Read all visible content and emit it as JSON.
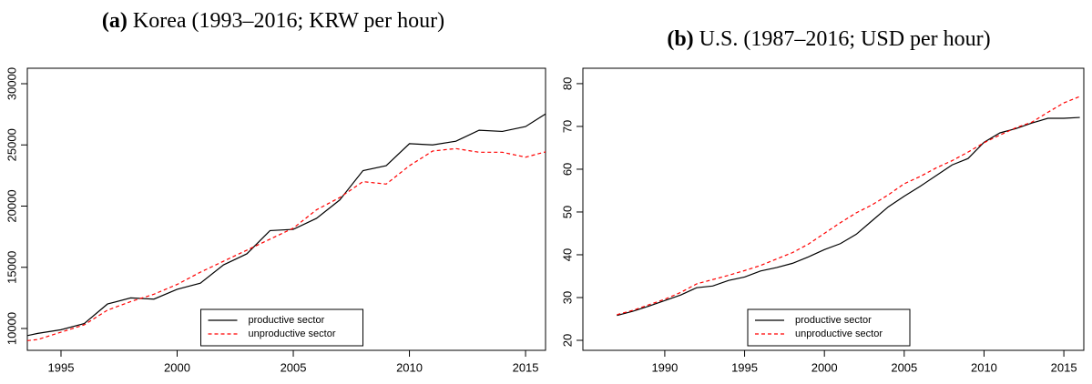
{
  "chart_data": [
    {
      "type": "line",
      "label": "(a)",
      "title": "Korea (1993–2016; KRW per hour)",
      "x": [
        1993,
        1994,
        1995,
        1996,
        1997,
        1998,
        1999,
        2000,
        2001,
        2002,
        2003,
        2004,
        2005,
        2006,
        2007,
        2008,
        2009,
        2010,
        2011,
        2012,
        2013,
        2014,
        2015,
        2016
      ],
      "series": [
        {
          "name": "productive sector",
          "color": "#000000",
          "dash": false,
          "values": [
            9200,
            9600,
            9900,
            10400,
            12000,
            12500,
            12400,
            13200,
            13700,
            15200,
            16100,
            18000,
            18100,
            19000,
            20500,
            22900,
            23300,
            25100,
            25000,
            25300,
            26200,
            26100,
            26500,
            27700
          ]
        },
        {
          "name": "unproductive sector",
          "color": "#ff0000",
          "dash": true,
          "values": [
            8900,
            9100,
            9700,
            10300,
            11500,
            12200,
            12800,
            13600,
            14600,
            15500,
            16400,
            17300,
            18200,
            19700,
            20700,
            22000,
            21800,
            23300,
            24500,
            24700,
            24400,
            24400,
            24000,
            24500
          ]
        }
      ],
      "xlim": [
        1993.55,
        2015.86
      ],
      "xticks": [
        1995,
        2000,
        2005,
        2010,
        2015
      ],
      "ylim": [
        8216,
        31264
      ],
      "yticks": [
        10000,
        15000,
        20000,
        25000,
        30000
      ],
      "legend": "bottom"
    },
    {
      "type": "line",
      "label": "(b)",
      "title": "U.S. (1987–2016; USD per hour)",
      "x": [
        1987,
        1988,
        1989,
        1990,
        1991,
        1992,
        1993,
        1994,
        1995,
        1996,
        1997,
        1998,
        1999,
        2000,
        2001,
        2002,
        2003,
        2004,
        2005,
        2006,
        2007,
        2008,
        2009,
        2010,
        2011,
        2012,
        2013,
        2014,
        2015,
        2016
      ],
      "series": [
        {
          "name": "productive sector",
          "color": "#000000",
          "dash": false,
          "values": [
            25.8,
            26.8,
            28.0,
            29.3,
            30.6,
            32.3,
            32.7,
            34.0,
            34.8,
            36.2,
            37.0,
            38.0,
            39.5,
            41.2,
            42.6,
            44.8,
            48.0,
            51.2,
            53.7,
            56.0,
            58.5,
            61.0,
            62.5,
            66.3,
            68.5,
            69.5,
            70.8,
            71.9,
            71.9,
            72.1
          ]
        },
        {
          "name": "unproductive sector",
          "color": "#ff0000",
          "dash": true,
          "values": [
            26.0,
            27.0,
            28.3,
            29.6,
            31.2,
            33.2,
            34.2,
            35.2,
            36.3,
            37.5,
            39.0,
            40.5,
            42.5,
            45.0,
            47.5,
            49.8,
            51.7,
            54.0,
            56.6,
            58.3,
            60.3,
            62.0,
            64.0,
            66.2,
            68.0,
            69.7,
            71.0,
            73.3,
            75.5,
            77.0
          ]
        }
      ],
      "xlim": [
        1984.87,
        2016.25
      ],
      "xticks": [
        1990,
        1995,
        2000,
        2005,
        2010,
        2015
      ],
      "ylim": [
        17.66,
        83.6
      ],
      "yticks": [
        20,
        30,
        40,
        50,
        60,
        70,
        80
      ],
      "legend": "bottom"
    }
  ]
}
